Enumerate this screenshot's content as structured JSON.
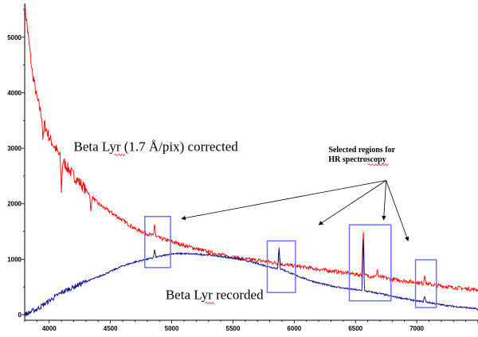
{
  "chart_data": {
    "type": "line",
    "title": "",
    "xlabel": "",
    "ylabel": "",
    "xlim": [
      3800,
      7500
    ],
    "ylim": [
      -100,
      5600
    ],
    "x_ticks": [
      4000,
      4500,
      5000,
      5500,
      6000,
      6500,
      7000
    ],
    "y_ticks": [
      0,
      1000,
      2000,
      3000,
      4000,
      5000
    ],
    "grid": false,
    "colors": {
      "corrected": "#ff0000",
      "recorded": "#00008b",
      "boxes": "#7070ff",
      "arrows": "#000000"
    },
    "series": [
      {
        "key": "corrected",
        "label": "Beta Lyr (1.7 Å/pix) corrected",
        "points": [
          [
            3800,
            5600
          ],
          [
            3830,
            5000
          ],
          [
            3860,
            4400
          ],
          [
            3900,
            3900
          ],
          [
            3950,
            3500
          ],
          [
            4000,
            3200
          ],
          [
            4050,
            3000
          ],
          [
            4100,
            2800
          ],
          [
            4150,
            2650
          ],
          [
            4200,
            2500
          ],
          [
            4250,
            2380
          ],
          [
            4300,
            2250
          ],
          [
            4400,
            2000
          ],
          [
            4500,
            1850
          ],
          [
            4600,
            1700
          ],
          [
            4700,
            1550
          ],
          [
            4800,
            1460
          ],
          [
            4850,
            1420
          ],
          [
            4900,
            1380
          ],
          [
            5000,
            1320
          ],
          [
            5100,
            1250
          ],
          [
            5200,
            1190
          ],
          [
            5300,
            1130
          ],
          [
            5400,
            1080
          ],
          [
            5500,
            1040
          ],
          [
            5600,
            1000
          ],
          [
            5700,
            980
          ],
          [
            5800,
            950
          ],
          [
            5900,
            910
          ],
          [
            6000,
            880
          ],
          [
            6100,
            850
          ],
          [
            6200,
            820
          ],
          [
            6300,
            790
          ],
          [
            6400,
            760
          ],
          [
            6500,
            730
          ],
          [
            6600,
            700
          ],
          [
            6700,
            680
          ],
          [
            6800,
            640
          ],
          [
            6900,
            610
          ],
          [
            7000,
            580
          ],
          [
            7100,
            550
          ],
          [
            7200,
            520
          ],
          [
            7300,
            490
          ],
          [
            7400,
            470
          ],
          [
            7500,
            450
          ]
        ],
        "features": [
          {
            "x": 3950,
            "depth": 400
          },
          {
            "x": 4100,
            "depth": 550
          },
          {
            "x": 4340,
            "depth": 300
          },
          {
            "x": 4861,
            "height": 250
          },
          {
            "x": 5876,
            "height": 300
          },
          {
            "x": 6563,
            "height": 900
          },
          {
            "x": 6678,
            "height": 150
          },
          {
            "x": 7065,
            "height": 180
          }
        ]
      },
      {
        "key": "recorded",
        "label": "Beta Lyr recorded",
        "points": [
          [
            3800,
            0
          ],
          [
            3900,
            100
          ],
          [
            4000,
            250
          ],
          [
            4100,
            400
          ],
          [
            4200,
            500
          ],
          [
            4300,
            600
          ],
          [
            4400,
            680
          ],
          [
            4500,
            780
          ],
          [
            4600,
            880
          ],
          [
            4700,
            950
          ],
          [
            4800,
            1000
          ],
          [
            4900,
            1050
          ],
          [
            5000,
            1100
          ],
          [
            5100,
            1100
          ],
          [
            5200,
            1090
          ],
          [
            5300,
            1080
          ],
          [
            5400,
            1050
          ],
          [
            5500,
            1020
          ],
          [
            5600,
            980
          ],
          [
            5700,
            920
          ],
          [
            5800,
            860
          ],
          [
            5900,
            820
          ],
          [
            6000,
            720
          ],
          [
            6100,
            640
          ],
          [
            6200,
            570
          ],
          [
            6300,
            520
          ],
          [
            6400,
            480
          ],
          [
            6500,
            450
          ],
          [
            6600,
            420
          ],
          [
            6700,
            380
          ],
          [
            6800,
            330
          ],
          [
            6900,
            290
          ],
          [
            7000,
            250
          ],
          [
            7100,
            220
          ],
          [
            7200,
            180
          ],
          [
            7300,
            150
          ],
          [
            7400,
            130
          ],
          [
            7500,
            100
          ]
        ],
        "features": [
          {
            "x": 4861,
            "height": 150
          },
          {
            "x": 5876,
            "height": 350
          },
          {
            "x": 6563,
            "height": 1000
          },
          {
            "x": 7065,
            "height": 120
          }
        ]
      }
    ],
    "boxes": [
      {
        "x0": 4780,
        "x1": 4990,
        "y0": 850,
        "y1": 1770
      },
      {
        "x0": 5780,
        "x1": 6010,
        "y0": 400,
        "y1": 1330
      },
      {
        "x0": 6450,
        "x1": 6790,
        "y0": 250,
        "y1": 1620
      },
      {
        "x0": 6990,
        "x1": 7160,
        "y0": 130,
        "y1": 990
      }
    ],
    "arrows": {
      "origin": [
        6750,
        2420
      ],
      "targets": [
        [
          5080,
          1730
        ],
        [
          6200,
          1620
        ],
        [
          6730,
          1710
        ],
        [
          6930,
          1330
        ]
      ]
    },
    "annotations": [
      {
        "key": "note",
        "text": [
          "Selected regions for",
          "HR spectroscopy"
        ],
        "x": 6520,
        "y": 2750
      }
    ]
  }
}
